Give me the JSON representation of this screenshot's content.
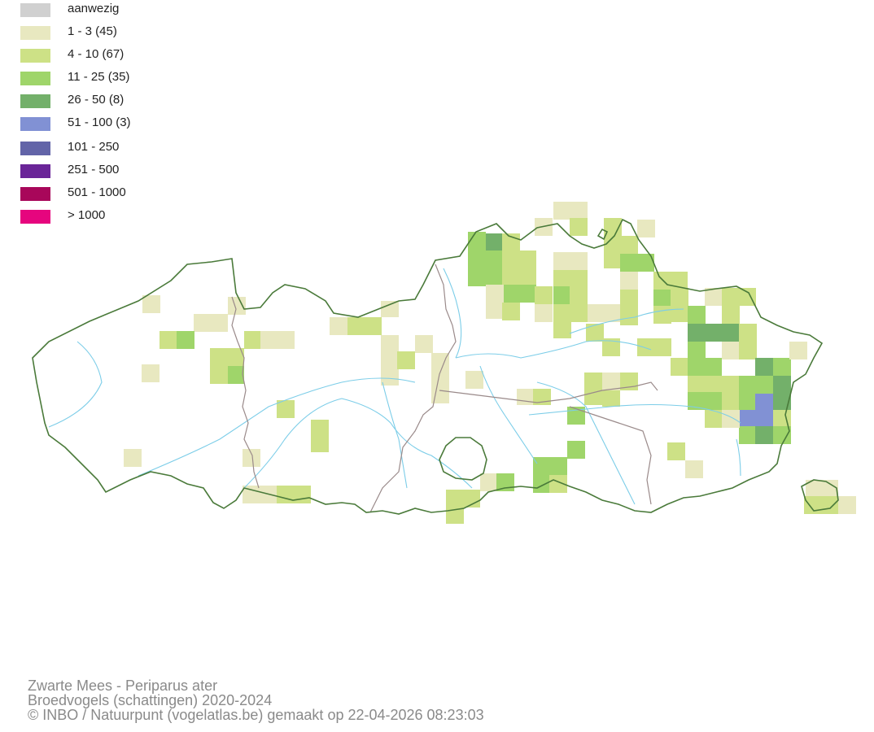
{
  "legend": [
    {
      "label": "aanwezig",
      "color": "#d0d0d0"
    },
    {
      "label": "1 - 3 (45)",
      "color": "#e8e8c0"
    },
    {
      "label": "4 - 10 (67)",
      "color": "#cde186"
    },
    {
      "label": "11 - 25 (35)",
      "color": "#9fd56a"
    },
    {
      "label": "26 - 50 (8)",
      "color": "#73b06a"
    },
    {
      "label": "51 - 100 (3)",
      "color": "#8191d4"
    },
    {
      "label": "101 - 250",
      "color": "#6264a8"
    },
    {
      "label": "251 - 500",
      "color": "#6a2598"
    },
    {
      "label": "501 - 1000",
      "color": "#a8075a"
    },
    {
      "label": "> 1000",
      "color": "#e6057e"
    }
  ],
  "caption": {
    "line1": "Zwarte Mees - Periparus ater",
    "line2": "Broedvogels (schattingen) 2020-2024",
    "line3": "© INBO / Natuurpunt (vogelatlas.be) gemaakt op 22-04-2026 08:23:03"
  },
  "colors": {
    "border": "#4a7a3a",
    "province": "#9a8a8a",
    "river": "#7ccde8"
  }
}
